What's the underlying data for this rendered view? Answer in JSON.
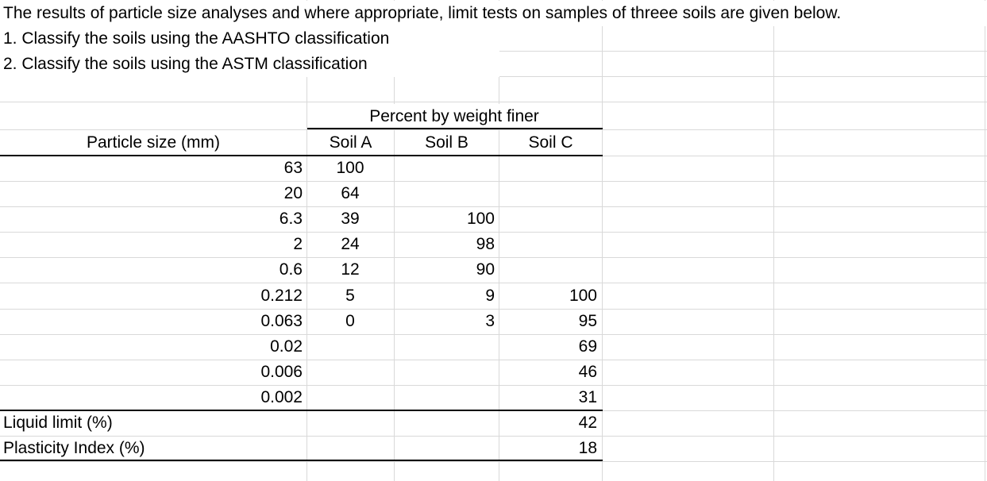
{
  "intro": {
    "line1": "The results of particle size analyses and where appropriate, limit tests on samples of threee soils are given below.",
    "line2": "1. Classify the soils using the AASHTO classification",
    "line3": "2. Classify the soils using the ASTM classification"
  },
  "table": {
    "group_header": "Percent by weight finer",
    "size_header": "Particle size (mm)",
    "soil_headers": [
      "Soil A",
      "Soil B",
      "Soil C"
    ],
    "rows": [
      {
        "size": "63",
        "a": "100",
        "b": "",
        "c": ""
      },
      {
        "size": "20",
        "a": "64",
        "b": "",
        "c": ""
      },
      {
        "size": "6.3",
        "a": "39",
        "b": "100",
        "c": ""
      },
      {
        "size": "2",
        "a": "24",
        "b": "98",
        "c": ""
      },
      {
        "size": "0.6",
        "a": "12",
        "b": "90",
        "c": ""
      },
      {
        "size": "0.212",
        "a": "5",
        "b": "9",
        "c": "100"
      },
      {
        "size": "0.063",
        "a": "0",
        "b": "3",
        "c": "95"
      },
      {
        "size": "0.02",
        "a": "",
        "b": "",
        "c": "69"
      },
      {
        "size": "0.006",
        "a": "",
        "b": "",
        "c": "46"
      },
      {
        "size": "0.002",
        "a": "",
        "b": "",
        "c": "31"
      }
    ],
    "limits": [
      {
        "label": "Liquid limit (%)",
        "c": "42"
      },
      {
        "label": "Plasticity Index (%)",
        "c": "18"
      }
    ]
  }
}
